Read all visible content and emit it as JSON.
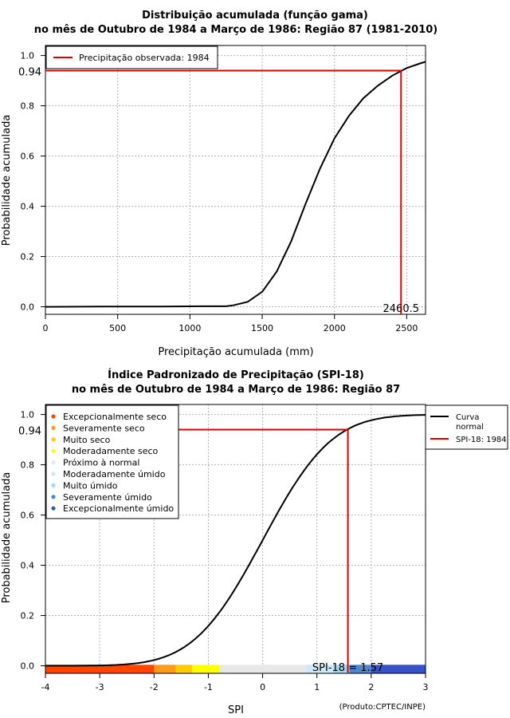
{
  "chart_data": [
    {
      "type": "line",
      "title": "Distribuição acumulada (função gama)",
      "subtitle": "no mês de Outubro de 1984 a Março de 1986: Região 87 (1981-2010)",
      "xlabel": "Precipitação acumulada (mm)",
      "ylabel": "Probabilidade acumulada",
      "xlim": [
        0,
        2630
      ],
      "ylim": [
        -0.03,
        1.04
      ],
      "xticks": [
        "0",
        "500",
        "1000",
        "1500",
        "2000",
        "2500"
      ],
      "xtick_values": [
        0,
        500,
        1000,
        1500,
        2000,
        2500
      ],
      "yticks": [
        "0.0",
        "0.2",
        "0.4",
        "0.6",
        "0.8",
        "1.0"
      ],
      "ytick_values": [
        0.0,
        0.2,
        0.4,
        0.6,
        0.8,
        1.0
      ],
      "grid": true,
      "legend": [
        {
          "label": "Precipitação observada: 1984",
          "color": "#e00000"
        }
      ],
      "legend_position": "top-left",
      "series": [
        {
          "name": "Função gama",
          "color": "#000000",
          "x": [
            0,
            400,
            800,
            1100,
            1250,
            1300,
            1400,
            1500,
            1600,
            1700,
            1800,
            1900,
            2000,
            2100,
            2200,
            2300,
            2400,
            2500,
            2600,
            2630
          ],
          "y": [
            0.0,
            0.001,
            0.001,
            0.002,
            0.002,
            0.006,
            0.02,
            0.06,
            0.14,
            0.26,
            0.41,
            0.55,
            0.67,
            0.76,
            0.83,
            0.88,
            0.92,
            0.95,
            0.97,
            0.975
          ]
        }
      ],
      "marker": {
        "x": 2460.5,
        "y": 0.94,
        "x_label": "2460.5",
        "y_label": "0.94",
        "color": "#e00000"
      }
    },
    {
      "type": "line",
      "title": "Índice Padronizado de Precipitação (SPI-18)",
      "subtitle": "no mês de Outubro de 1984 a Março de 1986: Região 87",
      "xlabel": "SPI",
      "ylabel": "Probabilidade acumulada",
      "xlim": [
        -4,
        3
      ],
      "ylim": [
        -0.03,
        1.04
      ],
      "xticks": [
        "-4",
        "-3",
        "-2",
        "-1",
        "0",
        "1",
        "2",
        "3"
      ],
      "xtick_values": [
        -4,
        -3,
        -2,
        -1,
        0,
        1,
        2,
        3
      ],
      "yticks": [
        "0.0",
        "0.2",
        "0.4",
        "0.6",
        "0.8",
        "1.0"
      ],
      "ytick_values": [
        0.0,
        0.2,
        0.4,
        0.6,
        0.8,
        1.0
      ],
      "grid": true,
      "categories_legend": [
        {
          "label": "Excepcionalmente seco",
          "color": "#ff4500"
        },
        {
          "label": "Severamente seco",
          "color": "#ff9a1a"
        },
        {
          "label": "Muito seco",
          "color": "#ffcc00"
        },
        {
          "label": "Moderadamente seco",
          "color": "#ffff00"
        },
        {
          "label": "Próximo à normal",
          "color": "#e8e8e8"
        },
        {
          "label": "Moderadamente úmido",
          "color": "#cdeaf6"
        },
        {
          "label": "Muito úmido",
          "color": "#9fd9f2"
        },
        {
          "label": "Severamente úmido",
          "color": "#4e86d2"
        },
        {
          "label": "Excepcionalmente úmido",
          "color": "#3552c6"
        }
      ],
      "color_bands": [
        {
          "from": -4,
          "to": -2,
          "color": "#ff4500"
        },
        {
          "from": -2,
          "to": -1.6,
          "color": "#ff9a1a"
        },
        {
          "from": -1.6,
          "to": -1.3,
          "color": "#ffcc00"
        },
        {
          "from": -1.3,
          "to": -0.8,
          "color": "#ffff00"
        },
        {
          "from": -0.8,
          "to": 0.8,
          "color": "#e8e8e8"
        },
        {
          "from": 0.8,
          "to": 1.3,
          "color": "#cdeaf6"
        },
        {
          "from": 1.3,
          "to": 1.6,
          "color": "#9fd9f2"
        },
        {
          "from": 1.6,
          "to": 2.0,
          "color": "#4e86d2"
        },
        {
          "from": 2.0,
          "to": 3.0,
          "color": "#3552c6"
        }
      ],
      "line_legend": [
        {
          "label": "Curva normal",
          "label_lines": [
            "Curva",
            "normal"
          ],
          "color": "#000000"
        },
        {
          "label": "SPI-18: 1984",
          "label_lines": [
            "SPI-18: 1984"
          ],
          "color": "#e00000"
        }
      ],
      "marker": {
        "x": 1.57,
        "y": 0.94,
        "x_label": "SPI-18 = 1.57",
        "y_label": "0.94",
        "color": "#e00000"
      },
      "footer": "(Produto:CPTEC/INPE)"
    }
  ]
}
